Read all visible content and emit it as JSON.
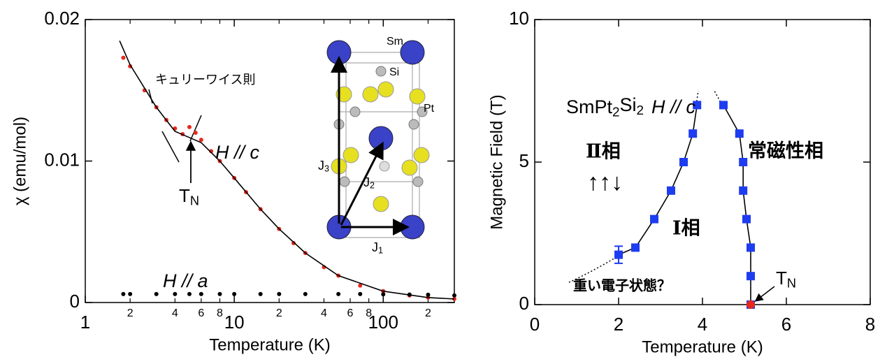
{
  "chart_data": [
    {
      "type": "line",
      "log_x": true,
      "xlabel": "Temperature (K)",
      "ylabel": "χ (emu/mol)",
      "xlim": [
        1,
        300
      ],
      "ylim": [
        0,
        0.02
      ],
      "xticks": [
        1,
        10,
        100
      ],
      "xminorticks": [
        {
          "value": 2,
          "label": "2"
        },
        {
          "value": 4,
          "label": "4"
        },
        {
          "value": 6,
          "label": "6"
        },
        {
          "value": 8,
          "label": "8"
        },
        {
          "value": 20,
          "label": "2"
        },
        {
          "value": 40,
          "label": "4"
        },
        {
          "value": 60,
          "label": "6"
        },
        {
          "value": 80,
          "label": "8"
        },
        {
          "value": 200,
          "label": "2"
        }
      ],
      "yticks": [
        0,
        0.01,
        0.02
      ],
      "series": [
        {
          "name": "H // c",
          "color": "#e8281e",
          "marker": "circle",
          "line": false,
          "x": [
            1.8,
            2,
            2.5,
            3,
            3.5,
            4,
            4.5,
            5,
            5.5,
            6,
            7,
            8,
            10,
            12,
            15,
            20,
            25,
            30,
            40,
            50,
            70,
            100,
            150,
            200,
            300
          ],
          "values": [
            0.0173,
            0.0167,
            0.015,
            0.0138,
            0.0129,
            0.0123,
            0.0119,
            0.0124,
            0.012,
            0.0115,
            0.0107,
            0.01,
            0.0088,
            0.0078,
            0.0066,
            0.0052,
            0.0042,
            0.0035,
            0.0025,
            0.0019,
            0.0012,
            0.0008,
            0.0005,
            0.00035,
            0.00025
          ]
        },
        {
          "name": "H // a",
          "color": "#000000",
          "marker": "circle",
          "line": false,
          "x": [
            1.8,
            2,
            3,
            4,
            5,
            6,
            8,
            10,
            15,
            20,
            30,
            50,
            70,
            100,
            150,
            200,
            300
          ],
          "values": [
            0.0006,
            0.0006,
            0.0006,
            0.0006,
            0.0006,
            0.0006,
            0.0006,
            0.0006,
            0.0006,
            0.0006,
            0.0006,
            0.0006,
            0.0006,
            0.00058,
            0.00056,
            0.00055,
            0.0005
          ]
        },
        {
          "color": "#000000",
          "marker": "none",
          "line": true,
          "x": [
            1.7,
            2,
            3,
            4,
            6,
            8,
            10,
            15,
            20,
            30,
            50,
            100,
            200,
            300
          ],
          "values": [
            0.0185,
            0.0168,
            0.0138,
            0.0121,
            0.0113,
            0.01,
            0.0088,
            0.0066,
            0.0052,
            0.0035,
            0.0019,
            0.0008,
            0.00035,
            0.00025
          ]
        }
      ],
      "annotations": {
        "curie_weiss": "キュリーワイス則",
        "tn": [
          "T",
          "N"
        ]
      },
      "inset": {
        "atoms": [
          "Sm",
          "Si",
          "Pt"
        ],
        "exchange": [
          [
            "J",
            "1"
          ],
          [
            "J",
            "2"
          ],
          [
            "J",
            "3"
          ]
        ]
      }
    },
    {
      "type": "scatter",
      "log_x": false,
      "xlabel": "Temperature (K)",
      "ylabel": "Magnetic Field (T)",
      "xlim": [
        0,
        8
      ],
      "ylim": [
        0,
        10
      ],
      "xticks": [
        0,
        2,
        4,
        6,
        8
      ],
      "yticks": [
        0,
        5,
        10
      ],
      "series": [
        {
          "color": "#1e3cf0",
          "marker": "square",
          "line": true,
          "x": [
            2.0,
            2.4,
            2.85,
            3.25,
            3.55,
            3.77,
            3.87
          ],
          "values": [
            1.75,
            2,
            3,
            4,
            5,
            6,
            7
          ],
          "errors": [
            0.3,
            null,
            null,
            null,
            null,
            null,
            null
          ]
        },
        {
          "color": "#1e3cf0",
          "marker": "square",
          "line": true,
          "x": [
            5.15,
            5.15,
            5.15,
            5.05,
            4.97,
            4.97,
            4.88,
            4.5
          ],
          "values": [
            0,
            1,
            2,
            3,
            4,
            5,
            6,
            7
          ]
        },
        {
          "color": "#e8281e",
          "marker": "circle",
          "line": false,
          "x": [
            5.15
          ],
          "values": [
            0
          ]
        }
      ],
      "annotations": {
        "compound": [
          "SmPt",
          "2",
          "Si",
          "2"
        ],
        "field_dir": "H // c",
        "phase2": "Ⅱ相",
        "spins": "↑↑↓",
        "paramagnetic": "常磁性相",
        "phase1": "Ⅰ相",
        "heavy_fermion": "重い電子状態？",
        "tn": [
          "T",
          "N"
        ]
      }
    }
  ]
}
